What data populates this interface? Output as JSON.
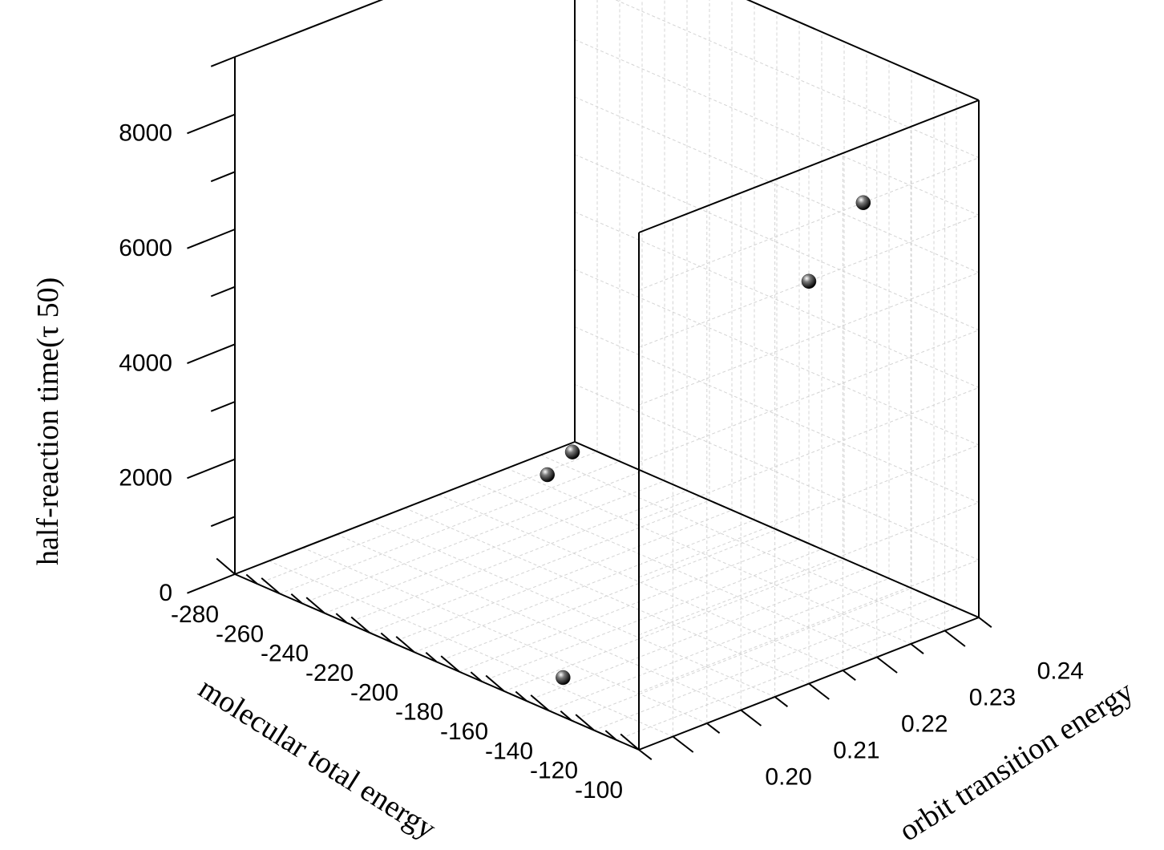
{
  "chart_data": {
    "type": "scatter",
    "projection": "3d",
    "title": "",
    "xlabel": "molecular total energy",
    "ylabel": "orbit transition energy",
    "zlabel": "half-reaction time(τ 50)",
    "xlim": [
      -280,
      -100
    ],
    "ylim": [
      0.195,
      0.245
    ],
    "zlim": [
      0,
      9000
    ],
    "x_ticks": [
      -280,
      -260,
      -240,
      -220,
      -200,
      -180,
      -160,
      -140,
      -120,
      -100
    ],
    "x_tick_labels": [
      "-280",
      "-260",
      "-240",
      "-220",
      "-200",
      "-180",
      "-160",
      "-140",
      "-120",
      "-100"
    ],
    "y_ticks": [
      0.2,
      0.21,
      0.22,
      0.23,
      0.24
    ],
    "y_tick_labels": [
      "0.20",
      "0.21",
      "0.22",
      "0.23",
      "0.24"
    ],
    "z_ticks": [
      0,
      2000,
      4000,
      6000,
      8000
    ],
    "z_tick_labels": [
      "0",
      "2000",
      "4000",
      "6000",
      "8000"
    ],
    "grid": true,
    "points": [
      {
        "x": -268,
        "y": 0.237,
        "z": 0
      },
      {
        "x": -275,
        "y": 0.243,
        "z": 0
      },
      {
        "x": -155,
        "y": 0.202,
        "z": 0
      },
      {
        "x": -100,
        "y": 0.22,
        "z": 7000
      },
      {
        "x": -100,
        "y": 0.228,
        "z": 8000
      }
    ],
    "marker_color": "#222222"
  }
}
